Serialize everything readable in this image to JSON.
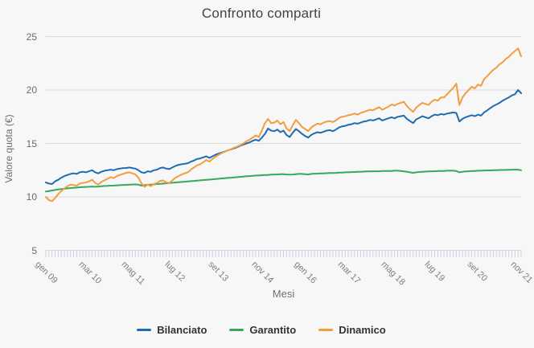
{
  "title": "Confronto comparti",
  "y_axis": {
    "title": "Valore quota (€)",
    "ticks": [
      "25",
      "20",
      "15",
      "10",
      "5"
    ]
  },
  "x_axis": {
    "title": "Mesi"
  },
  "theme": {
    "background": "#f7f7f7",
    "gridline_color": "#d9d9d9",
    "minor_tick_color": "#c9d3e2",
    "axis_text_color": "#6b6b6b",
    "legend_text_color": "#333333"
  },
  "legend": {
    "items": [
      {
        "label": "Bilanciato",
        "color": "#1f6cb0"
      },
      {
        "label": "Garantito",
        "color": "#34a95f"
      },
      {
        "label": "Dinamico",
        "color": "#f19d40"
      }
    ]
  },
  "chart_data": {
    "type": "line",
    "title": "Confronto comparti",
    "xlabel": "Mesi",
    "ylabel": "Valore quota (€)",
    "ylim": [
      5,
      25
    ],
    "y_gridlines": [
      25,
      20,
      15,
      10,
      5
    ],
    "grid": "horizontal-only",
    "legend_position": "bottom-center",
    "x_unit": "months",
    "months_total": 155,
    "x_range_text": "gen 09 - nov 21",
    "x_ticks": [
      {
        "m": 0,
        "label": "gen 09"
      },
      {
        "m": 14,
        "label": "mar 10"
      },
      {
        "m": 28,
        "label": "mag 11"
      },
      {
        "m": 42,
        "label": "lug 12"
      },
      {
        "m": 56,
        "label": "set 13"
      },
      {
        "m": 70,
        "label": "nov 14"
      },
      {
        "m": 84,
        "label": "gen 16"
      },
      {
        "m": 98,
        "label": "mar 17"
      },
      {
        "m": 112,
        "label": "mag 18"
      },
      {
        "m": 126,
        "label": "lug 19"
      },
      {
        "m": 140,
        "label": "set 20"
      },
      {
        "m": 154,
        "label": "nov 21"
      }
    ],
    "series": [
      {
        "name": "Bilanciato",
        "color": "#1f6cb0",
        "values": [
          11.35,
          11.25,
          11.2,
          11.45,
          11.6,
          11.8,
          11.95,
          12.05,
          12.15,
          12.2,
          12.15,
          12.3,
          12.35,
          12.3,
          12.4,
          12.5,
          12.3,
          12.2,
          12.35,
          12.45,
          12.5,
          12.55,
          12.5,
          12.6,
          12.65,
          12.7,
          12.7,
          12.75,
          12.7,
          12.65,
          12.5,
          12.3,
          12.25,
          12.4,
          12.35,
          12.5,
          12.55,
          12.7,
          12.75,
          12.65,
          12.6,
          12.75,
          12.9,
          13.0,
          13.05,
          13.1,
          13.15,
          13.3,
          13.4,
          13.55,
          13.6,
          13.7,
          13.8,
          13.65,
          13.8,
          13.95,
          14.05,
          14.15,
          14.25,
          14.35,
          14.45,
          14.55,
          14.65,
          14.8,
          14.9,
          15.0,
          15.1,
          15.25,
          15.35,
          15.25,
          15.55,
          15.9,
          16.4,
          16.2,
          16.15,
          16.3,
          16.05,
          16.2,
          15.8,
          15.6,
          16.0,
          16.35,
          16.15,
          15.9,
          15.7,
          15.55,
          15.8,
          15.95,
          16.05,
          16.0,
          16.1,
          16.2,
          16.25,
          16.15,
          16.3,
          16.5,
          16.6,
          16.65,
          16.75,
          16.8,
          16.9,
          16.85,
          16.95,
          17.05,
          17.1,
          17.2,
          17.15,
          17.25,
          17.35,
          17.15,
          17.25,
          17.35,
          17.45,
          17.35,
          17.5,
          17.55,
          17.6,
          17.3,
          17.1,
          16.9,
          17.25,
          17.4,
          17.55,
          17.45,
          17.35,
          17.55,
          17.7,
          17.65,
          17.75,
          17.7,
          17.8,
          17.85,
          17.9,
          17.85,
          17.05,
          17.3,
          17.45,
          17.55,
          17.65,
          17.55,
          17.7,
          17.6,
          17.9,
          18.1,
          18.3,
          18.5,
          18.65,
          18.8,
          19.0,
          19.15,
          19.3,
          19.5,
          19.6,
          20.0,
          19.7
        ]
      },
      {
        "name": "Garantito",
        "color": "#34a95f",
        "values": [
          10.5,
          10.55,
          10.6,
          10.65,
          10.7,
          10.73,
          10.76,
          10.8,
          10.83,
          10.85,
          10.87,
          10.9,
          10.92,
          10.93,
          10.95,
          10.97,
          10.95,
          10.97,
          11.0,
          11.02,
          11.03,
          11.05,
          11.06,
          11.08,
          11.1,
          11.12,
          11.13,
          11.15,
          11.16,
          11.17,
          11.15,
          11.05,
          11.1,
          11.13,
          11.15,
          11.17,
          11.2,
          11.22,
          11.25,
          11.27,
          11.3,
          11.32,
          11.35,
          11.37,
          11.4,
          11.42,
          11.45,
          11.47,
          11.5,
          11.53,
          11.55,
          11.58,
          11.6,
          11.62,
          11.65,
          11.68,
          11.7,
          11.73,
          11.75,
          11.78,
          11.8,
          11.83,
          11.85,
          11.88,
          11.9,
          11.93,
          11.95,
          11.97,
          12.0,
          12.0,
          12.03,
          12.05,
          12.05,
          12.08,
          12.1,
          12.1,
          12.13,
          12.13,
          12.1,
          12.08,
          12.1,
          12.13,
          12.15,
          12.15,
          12.13,
          12.1,
          12.15,
          12.17,
          12.18,
          12.2,
          12.2,
          12.22,
          12.23,
          12.23,
          12.25,
          12.27,
          12.28,
          12.3,
          12.3,
          12.32,
          12.33,
          12.35,
          12.35,
          12.37,
          12.38,
          12.38,
          12.4,
          12.4,
          12.4,
          12.42,
          12.42,
          12.43,
          12.43,
          12.45,
          12.45,
          12.43,
          12.4,
          12.35,
          12.3,
          12.25,
          12.3,
          12.33,
          12.35,
          12.37,
          12.38,
          12.4,
          12.4,
          12.42,
          12.43,
          12.43,
          12.45,
          12.45,
          12.45,
          12.43,
          12.3,
          12.35,
          12.38,
          12.4,
          12.42,
          12.43,
          12.45,
          12.45,
          12.47,
          12.48,
          12.48,
          12.5,
          12.5,
          12.52,
          12.52,
          12.53,
          12.53,
          12.55,
          12.55,
          12.55,
          12.5
        ]
      },
      {
        "name": "Dinamico",
        "color": "#f19d40",
        "values": [
          10.0,
          9.7,
          9.6,
          9.9,
          10.25,
          10.55,
          10.8,
          11.0,
          11.15,
          11.1,
          11.05,
          11.25,
          11.3,
          11.35,
          11.45,
          11.6,
          11.3,
          11.15,
          11.4,
          11.55,
          11.7,
          11.85,
          11.75,
          11.95,
          12.05,
          12.15,
          12.25,
          12.3,
          12.2,
          12.1,
          11.8,
          11.25,
          10.95,
          11.15,
          11.0,
          11.2,
          11.3,
          11.5,
          11.55,
          11.35,
          11.3,
          11.55,
          11.8,
          11.95,
          12.1,
          12.2,
          12.3,
          12.55,
          12.75,
          12.95,
          13.05,
          13.25,
          13.45,
          13.3,
          13.55,
          13.75,
          13.95,
          14.1,
          14.25,
          14.35,
          14.45,
          14.6,
          14.7,
          14.85,
          15.0,
          15.2,
          15.35,
          15.55,
          15.75,
          15.6,
          16.2,
          16.9,
          17.3,
          16.9,
          16.95,
          17.15,
          16.8,
          17.0,
          16.4,
          16.15,
          16.7,
          17.2,
          16.9,
          16.55,
          16.35,
          16.15,
          16.5,
          16.7,
          16.85,
          16.8,
          16.95,
          17.05,
          17.1,
          17.0,
          17.15,
          17.4,
          17.5,
          17.55,
          17.65,
          17.7,
          17.8,
          17.7,
          17.85,
          17.95,
          18.05,
          18.15,
          18.1,
          18.25,
          18.4,
          18.15,
          18.3,
          18.45,
          18.65,
          18.55,
          18.7,
          18.8,
          18.9,
          18.5,
          18.2,
          17.95,
          18.35,
          18.6,
          18.8,
          18.7,
          18.6,
          18.9,
          19.1,
          19.0,
          19.3,
          19.3,
          19.6,
          19.9,
          20.2,
          20.6,
          18.6,
          19.3,
          19.7,
          20.0,
          20.3,
          20.15,
          20.5,
          20.4,
          21.0,
          21.3,
          21.6,
          21.9,
          22.1,
          22.4,
          22.6,
          22.9,
          23.1,
          23.4,
          23.65,
          23.9,
          23.15
        ]
      }
    ]
  }
}
